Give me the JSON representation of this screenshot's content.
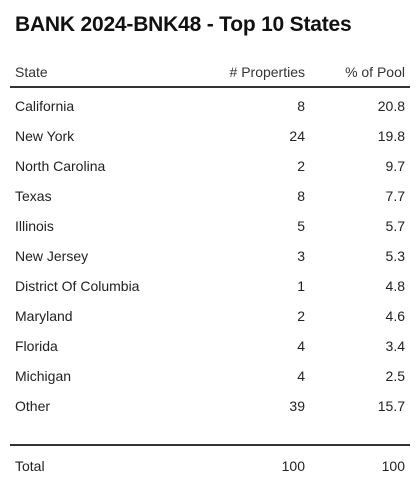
{
  "title": "BANK 2024-BNK48 - Top 10 States",
  "table": {
    "headers": {
      "state": "State",
      "properties": "# Properties",
      "pct_pool": "% of Pool"
    },
    "rows": [
      {
        "state": "California",
        "properties": "8",
        "pct_pool": "20.8"
      },
      {
        "state": "New York",
        "properties": "24",
        "pct_pool": "19.8"
      },
      {
        "state": "North Carolina",
        "properties": "2",
        "pct_pool": "9.7"
      },
      {
        "state": "Texas",
        "properties": "8",
        "pct_pool": "7.7"
      },
      {
        "state": "Illinois",
        "properties": "5",
        "pct_pool": "5.7"
      },
      {
        "state": "New Jersey",
        "properties": "3",
        "pct_pool": "5.3"
      },
      {
        "state": "District Of Columbia",
        "properties": "1",
        "pct_pool": "4.8"
      },
      {
        "state": "Maryland",
        "properties": "2",
        "pct_pool": "4.6"
      },
      {
        "state": "Florida",
        "properties": "4",
        "pct_pool": "3.4"
      },
      {
        "state": "Michigan",
        "properties": "4",
        "pct_pool": "2.5"
      },
      {
        "state": "Other",
        "properties": "39",
        "pct_pool": "15.7"
      }
    ],
    "total": {
      "state": "Total",
      "properties": "100",
      "pct_pool": "100"
    }
  }
}
